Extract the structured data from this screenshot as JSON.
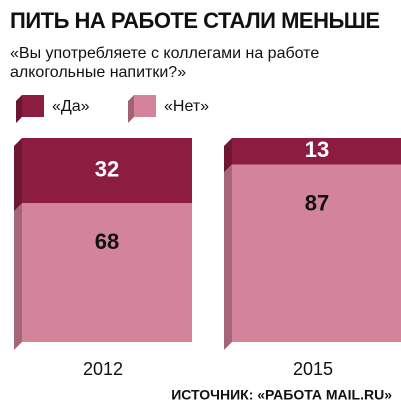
{
  "chart_data": {
    "type": "stacked_bar",
    "title": "ПИТЬ НА РАБОТЕ СТАЛИ МЕНЬШЕ",
    "subtitle": "«Вы употребляете с коллегами на работе алкогольные напитки?»",
    "categories": [
      "2012",
      "2015"
    ],
    "series": [
      {
        "name": "«Да»",
        "color": "#8c1d40",
        "values": [
          32,
          13
        ]
      },
      {
        "name": "«Нет»",
        "color": "#d4849a",
        "values": [
          68,
          87
        ]
      }
    ],
    "source": "ИСТОЧНИК: «РАБОТА MAIL.RU»"
  }
}
